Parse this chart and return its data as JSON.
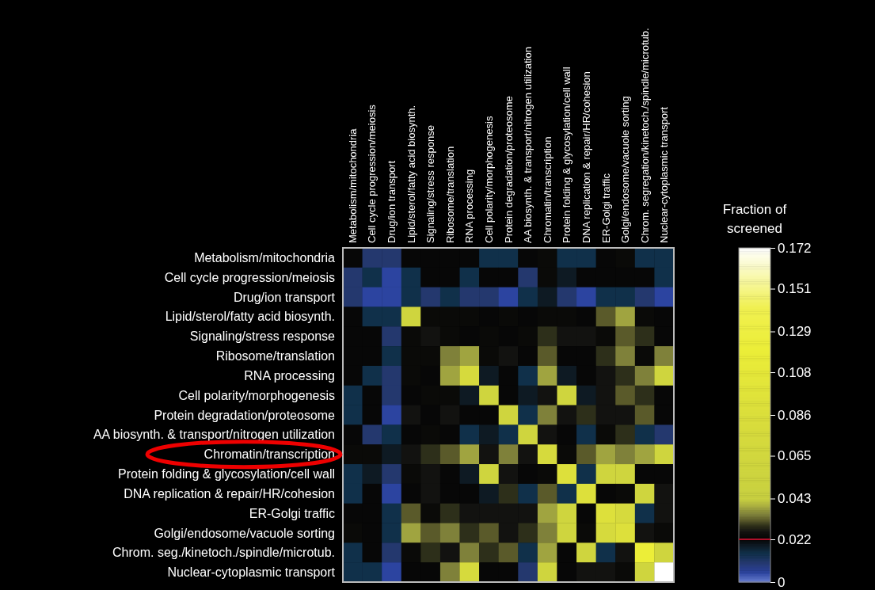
{
  "chart_data": {
    "type": "heatmap",
    "clabel": "Fraction of screened",
    "categories": [
      "Metabolism/mitochondria",
      "Cell cycle progression/meiosis",
      "Drug/ion transport",
      "Lipid/sterol/fatty acid biosynth.",
      "Signaling/stress response",
      "Ribosome/translation",
      "RNA processing",
      "Cell polarity/morphogenesis",
      "Protein degradation/proteosome",
      "AA biosynth. & transport/nitrogen utilization",
      "Chromatin/transcription",
      "Protein folding & glycosylation/cell wall",
      "DNA replication & repair/HR/cohesion",
      "ER-Golgi traffic",
      "Golgi/endosome/vacuole sorting",
      "Chrom. segregation/kinetoch./spindle/microtub.",
      "Nuclear-cytoplasmic transport"
    ],
    "y_categories": [
      "Metabolism/mitochondria",
      "Cell cycle progression/meiosis",
      "Drug/ion transport",
      "Lipid/sterol/fatty acid biosynth.",
      "Signaling/stress response",
      "Ribosome/translation",
      "RNA processing",
      "Cell polarity/morphogenesis",
      "Protein degradation/proteosome",
      "AA biosynth. & transport/nitrogen utilization",
      "Chromatin/transcription",
      "Protein folding & glycosylation/cell wall",
      "DNA replication & repair/HR/cohesion",
      "ER-Golgi traffic",
      "Golgi/endosome/vacuole sorting",
      "Chrom. seg./kinetoch./spindle/microtub.",
      "Nuclear-cytoplasmic transport"
    ],
    "cells": [
      [
        0.022,
        0.01,
        0.01,
        0.022,
        0.022,
        0.022,
        0.022,
        0.015,
        0.015,
        0.022,
        0.024,
        0.015,
        0.015,
        0.022,
        0.024,
        0.015,
        0.015
      ],
      [
        0.01,
        0.015,
        0.005,
        0.015,
        0.022,
        0.022,
        0.015,
        0.022,
        0.022,
        0.01,
        0.024,
        0.019,
        0.022,
        0.022,
        0.022,
        0.022,
        0.015
      ],
      [
        0.01,
        0.005,
        0.005,
        0.015,
        0.01,
        0.015,
        0.01,
        0.01,
        0.005,
        0.015,
        0.019,
        0.01,
        0.005,
        0.015,
        0.015,
        0.01,
        0.005
      ],
      [
        0.022,
        0.015,
        0.015,
        0.06,
        0.024,
        0.024,
        0.024,
        0.022,
        0.024,
        0.022,
        0.024,
        0.024,
        0.022,
        0.032,
        0.038,
        0.024,
        0.022
      ],
      [
        0.022,
        0.022,
        0.01,
        0.024,
        0.026,
        0.024,
        0.022,
        0.024,
        0.022,
        0.024,
        0.029,
        0.026,
        0.026,
        0.024,
        0.032,
        0.029,
        0.022
      ],
      [
        0.022,
        0.022,
        0.015,
        0.024,
        0.024,
        0.035,
        0.038,
        0.024,
        0.026,
        0.022,
        0.032,
        0.022,
        0.022,
        0.029,
        0.035,
        0.024,
        0.035
      ],
      [
        0.022,
        0.015,
        0.01,
        0.024,
        0.022,
        0.038,
        0.075,
        0.019,
        0.022,
        0.015,
        0.038,
        0.019,
        0.022,
        0.026,
        0.029,
        0.035,
        0.06
      ],
      [
        0.015,
        0.022,
        0.01,
        0.022,
        0.024,
        0.024,
        0.019,
        0.06,
        0.022,
        0.019,
        0.026,
        0.06,
        0.019,
        0.026,
        0.032,
        0.029,
        0.022
      ],
      [
        0.015,
        0.022,
        0.005,
        0.026,
        0.022,
        0.026,
        0.022,
        0.022,
        0.06,
        0.015,
        0.035,
        0.026,
        0.029,
        0.026,
        0.026,
        0.032,
        0.022
      ],
      [
        0.022,
        0.01,
        0.015,
        0.022,
        0.024,
        0.022,
        0.015,
        0.019,
        0.015,
        0.06,
        0.026,
        0.022,
        0.015,
        0.024,
        0.029,
        0.015,
        0.01
      ],
      [
        0.024,
        0.024,
        0.019,
        0.026,
        0.029,
        0.032,
        0.038,
        0.026,
        0.035,
        0.026,
        0.075,
        0.024,
        0.032,
        0.038,
        0.035,
        0.038,
        0.06
      ],
      [
        0.015,
        0.019,
        0.01,
        0.024,
        0.026,
        0.022,
        0.019,
        0.06,
        0.026,
        0.022,
        0.024,
        0.09,
        0.015,
        0.06,
        0.06,
        0.022,
        0.022
      ],
      [
        0.015,
        0.022,
        0.005,
        0.022,
        0.026,
        0.022,
        0.022,
        0.019,
        0.029,
        0.015,
        0.032,
        0.015,
        0.09,
        0.022,
        0.024,
        0.06,
        0.026
      ],
      [
        0.022,
        0.022,
        0.015,
        0.032,
        0.024,
        0.029,
        0.026,
        0.026,
        0.026,
        0.026,
        0.038,
        0.06,
        0.022,
        0.09,
        0.075,
        0.015,
        0.026
      ],
      [
        0.024,
        0.022,
        0.015,
        0.038,
        0.032,
        0.035,
        0.029,
        0.032,
        0.026,
        0.029,
        0.035,
        0.06,
        0.024,
        0.075,
        0.09,
        0.026,
        0.024
      ],
      [
        0.015,
        0.022,
        0.01,
        0.024,
        0.029,
        0.026,
        0.035,
        0.029,
        0.032,
        0.015,
        0.038,
        0.022,
        0.06,
        0.015,
        0.026,
        0.12,
        0.06
      ],
      [
        0.015,
        0.015,
        0.005,
        0.022,
        0.022,
        0.035,
        0.075,
        0.022,
        0.022,
        0.01,
        0.06,
        0.022,
        0.026,
        0.026,
        0.024,
        0.06,
        0.172
      ]
    ],
    "clim": [
      0,
      0.172
    ],
    "cticks": [
      0,
      0.022,
      0.043,
      0.065,
      0.086,
      0.108,
      0.129,
      0.151,
      0.172
    ]
  }
}
